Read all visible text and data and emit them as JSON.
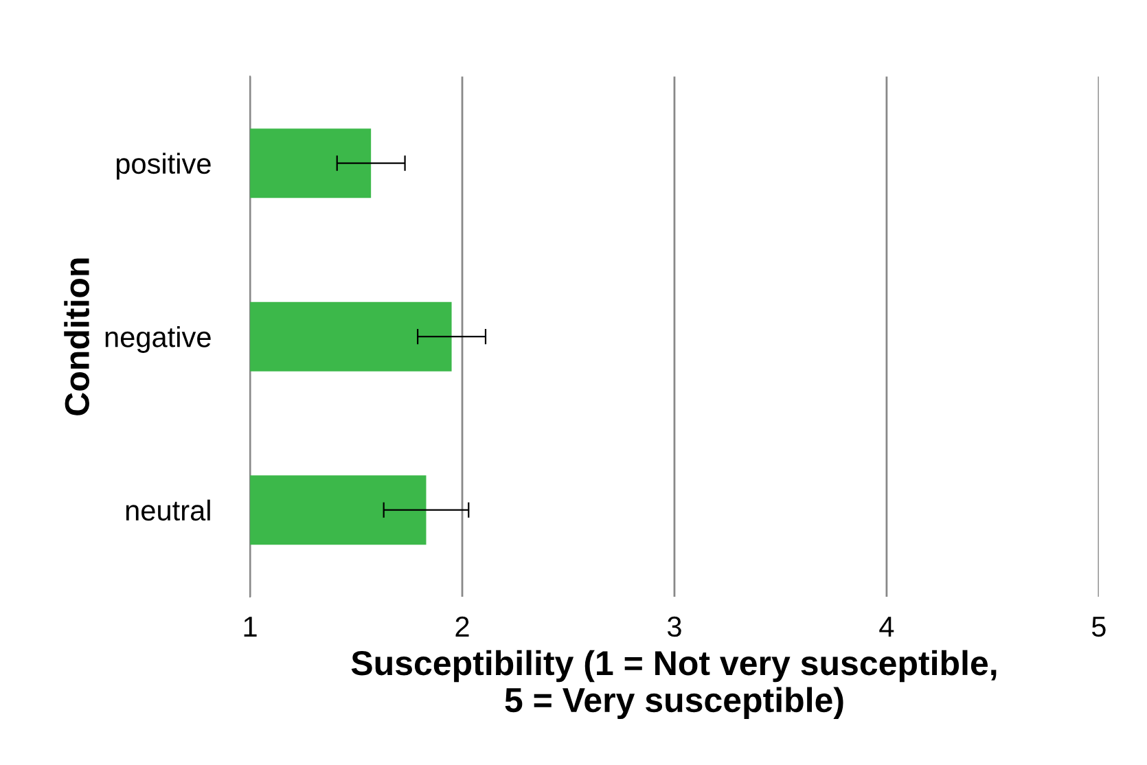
{
  "chart_data": {
    "type": "bar",
    "orientation": "horizontal",
    "xlabel": "Susceptibility (1 = Not very susceptible,\n5 = Very susceptible)",
    "ylabel": "Condition",
    "categories": [
      "positive",
      "negative",
      "neutral"
    ],
    "values": [
      1.57,
      1.95,
      1.83
    ],
    "errors": [
      0.16,
      0.16,
      0.2
    ],
    "color": "#3cb84a",
    "xlim": [
      1,
      5
    ],
    "xticks": [
      1,
      2,
      3,
      4,
      5
    ],
    "grid": "x"
  }
}
